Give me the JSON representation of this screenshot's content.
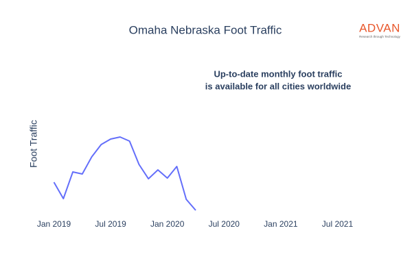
{
  "chart_data": {
    "type": "line",
    "title": "Omaha Nebraska Foot Traffic",
    "y_label": "Foot Traffic",
    "annotation": [
      "Up-to-date monthly foot traffic",
      "is available for all cities worldwide"
    ],
    "logo": {
      "name": "ADVAN",
      "tagline": "Research through Technology"
    },
    "x": [
      "2019-01",
      "2019-02",
      "2019-03",
      "2019-04",
      "2019-05",
      "2019-06",
      "2019-07",
      "2019-08",
      "2019-09",
      "2019-10",
      "2019-11",
      "2019-12",
      "2020-01",
      "2020-02",
      "2020-03",
      "2020-04"
    ],
    "series": [
      {
        "name": "Foot Traffic",
        "color": "#636efa",
        "values": [
          54,
          30,
          69,
          66,
          91,
          109,
          117,
          120,
          114,
          80,
          59,
          72,
          60,
          77,
          29,
          13
        ]
      }
    ],
    "xlim": [
      "2018-11",
      "2021-09"
    ],
    "xticks": [
      {
        "value": "2019-01",
        "label": "Jan 2019"
      },
      {
        "value": "2019-07",
        "label": "Jul 2019"
      },
      {
        "value": "2020-01",
        "label": "Jan 2020"
      },
      {
        "value": "2020-07",
        "label": "Jul 2020"
      },
      {
        "value": "2021-01",
        "label": "Jan 2021"
      },
      {
        "value": "2021-07",
        "label": "Jul 2021"
      }
    ],
    "ylim": [
      0,
      130
    ]
  }
}
